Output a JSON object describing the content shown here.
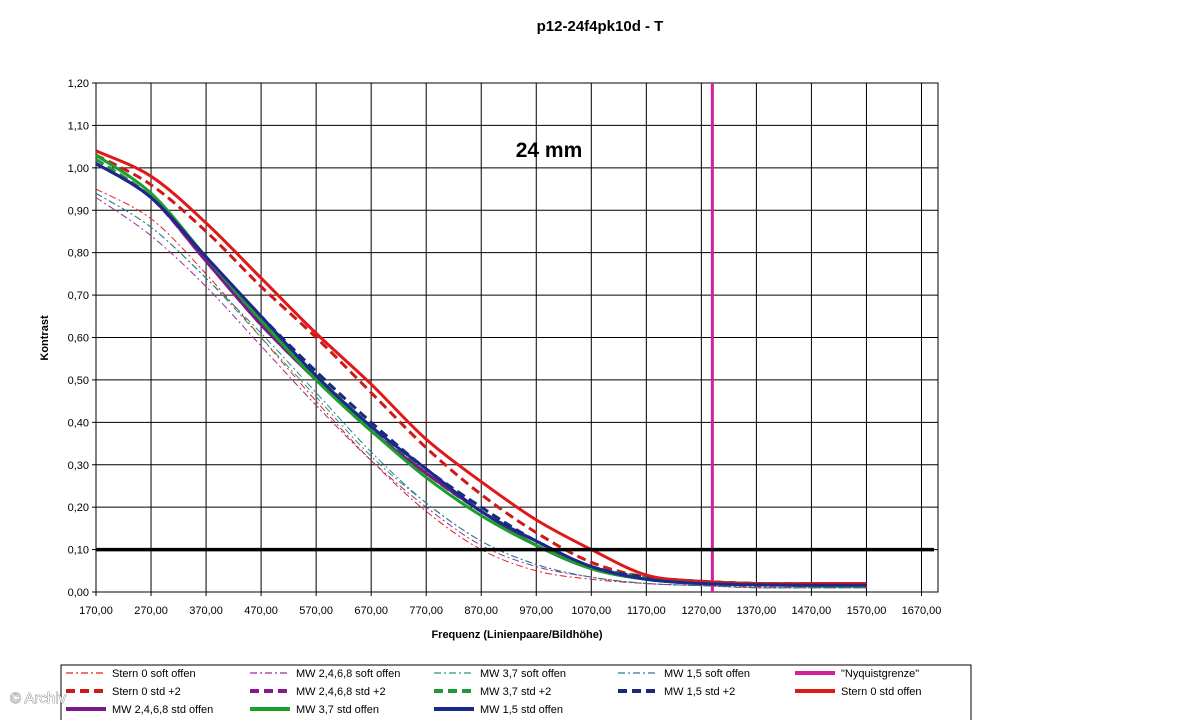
{
  "watermark": "© Archiv",
  "chart_data": {
    "type": "line",
    "title": "p12-24f4pk10d - T",
    "annotation": "24 mm",
    "xlabel": "Frequenz (Linienpaare/Bildhöhe)",
    "ylabel": "Kontrast",
    "xlim": [
      170,
      1700
    ],
    "ylim": [
      0,
      1.2
    ],
    "xticks": [
      "170,00",
      "270,00",
      "370,00",
      "470,00",
      "570,00",
      "670,00",
      "770,00",
      "870,00",
      "970,00",
      "1070,00",
      "1170,00",
      "1270,00",
      "1370,00",
      "1470,00",
      "1570,00",
      "1670,00"
    ],
    "xtick_values": [
      170,
      270,
      370,
      470,
      570,
      670,
      770,
      870,
      970,
      1070,
      1170,
      1270,
      1370,
      1470,
      1570,
      1670
    ],
    "yticks": [
      "0,00",
      "0,10",
      "0,20",
      "0,30",
      "0,40",
      "0,50",
      "0,60",
      "0,70",
      "0,80",
      "0,90",
      "1,00",
      "1,10",
      "1,20"
    ],
    "ytick_values": [
      0,
      0.1,
      0.2,
      0.3,
      0.4,
      0.5,
      0.6,
      0.7,
      0.8,
      0.9,
      1.0,
      1.1,
      1.2
    ],
    "grid": true,
    "legend_position": "bottom",
    "reference_lines": [
      {
        "orientation": "horizontal",
        "value": 0.1,
        "color": "#000000"
      }
    ],
    "series": [
      {
        "name": "Stern 0 soft offen",
        "color": "#e02020",
        "dash": "dashdot",
        "width": 1,
        "x": [
          170,
          270,
          370,
          470,
          570,
          670,
          770,
          870,
          970,
          1070,
          1170,
          1270,
          1370,
          1470,
          1570
        ],
        "y": [
          0.95,
          0.88,
          0.75,
          0.6,
          0.45,
          0.31,
          0.19,
          0.1,
          0.05,
          0.03,
          0.02,
          0.015,
          0.012,
          0.01,
          0.01
        ]
      },
      {
        "name": "MW 2,4,6,8 soft offen",
        "color": "#9a2a9a",
        "dash": "dashdot",
        "width": 1,
        "x": [
          170,
          270,
          370,
          470,
          570,
          670,
          770,
          870,
          970,
          1070,
          1170,
          1270,
          1370,
          1470,
          1570
        ],
        "y": [
          0.93,
          0.84,
          0.72,
          0.58,
          0.44,
          0.31,
          0.2,
          0.11,
          0.06,
          0.035,
          0.02,
          0.015,
          0.01,
          0.01,
          0.01
        ]
      },
      {
        "name": "MW 3,7 soft offen",
        "color": "#2a9a5a",
        "dash": "dashdot",
        "width": 1,
        "x": [
          170,
          270,
          370,
          470,
          570,
          670,
          770,
          870,
          970,
          1070,
          1170,
          1270,
          1370,
          1470,
          1570
        ],
        "y": [
          0.94,
          0.86,
          0.74,
          0.6,
          0.46,
          0.32,
          0.21,
          0.12,
          0.065,
          0.035,
          0.02,
          0.015,
          0.01,
          0.01,
          0.01
        ]
      },
      {
        "name": "MW 1,5 soft offen",
        "color": "#2a7a9a",
        "dash": "dashdot",
        "width": 1,
        "x": [
          170,
          270,
          370,
          470,
          570,
          670,
          770,
          870,
          970,
          1070,
          1170,
          1270,
          1370,
          1470,
          1570
        ],
        "y": [
          0.94,
          0.86,
          0.74,
          0.61,
          0.47,
          0.33,
          0.21,
          0.12,
          0.065,
          0.035,
          0.02,
          0.015,
          0.01,
          0.01,
          0.01
        ]
      },
      {
        "name": "\"Nyquistgrenze\"",
        "color": "#d81ea0",
        "dash": "solid",
        "width": 3,
        "x": [
          1290,
          1290
        ],
        "y": [
          0,
          1.2
        ]
      },
      {
        "name": "Stern 0 std +2",
        "color": "#d01818",
        "dash": "dash",
        "width": 3,
        "x": [
          170,
          270,
          370,
          470,
          570,
          670,
          770,
          870,
          970,
          1070,
          1170,
          1270,
          1370,
          1470,
          1570
        ],
        "y": [
          1.03,
          0.96,
          0.85,
          0.72,
          0.6,
          0.47,
          0.34,
          0.23,
          0.14,
          0.07,
          0.035,
          0.025,
          0.02,
          0.02,
          0.02
        ]
      },
      {
        "name": "MW 2,4,6,8 std +2",
        "color": "#8a1a8a",
        "dash": "dash",
        "width": 3,
        "x": [
          170,
          270,
          370,
          470,
          570,
          670,
          770,
          870,
          970,
          1070,
          1170,
          1270,
          1370,
          1470,
          1570
        ],
        "y": [
          1.02,
          0.93,
          0.78,
          0.63,
          0.5,
          0.38,
          0.28,
          0.19,
          0.12,
          0.06,
          0.035,
          0.025,
          0.02,
          0.015,
          0.015
        ]
      },
      {
        "name": "MW 3,7 std +2",
        "color": "#1a9a3a",
        "dash": "dash",
        "width": 3,
        "x": [
          170,
          270,
          370,
          470,
          570,
          670,
          770,
          870,
          970,
          1070,
          1170,
          1270,
          1370,
          1470,
          1570
        ],
        "y": [
          1.02,
          0.93,
          0.79,
          0.64,
          0.51,
          0.39,
          0.28,
          0.19,
          0.12,
          0.06,
          0.035,
          0.025,
          0.02,
          0.015,
          0.015
        ]
      },
      {
        "name": "MW 1,5 std +2",
        "color": "#1a2a7a",
        "dash": "dash",
        "width": 3,
        "x": [
          170,
          270,
          370,
          470,
          570,
          670,
          770,
          870,
          970,
          1070,
          1170,
          1270,
          1370,
          1470,
          1570
        ],
        "y": [
          1.01,
          0.93,
          0.79,
          0.65,
          0.52,
          0.4,
          0.29,
          0.2,
          0.12,
          0.06,
          0.035,
          0.025,
          0.02,
          0.018,
          0.018
        ]
      },
      {
        "name": "Stern 0 std offen",
        "color": "#e01818",
        "dash": "solid",
        "width": 3,
        "x": [
          170,
          270,
          370,
          470,
          570,
          670,
          770,
          870,
          970,
          1070,
          1170,
          1270,
          1370,
          1470,
          1570
        ],
        "y": [
          1.04,
          0.98,
          0.87,
          0.74,
          0.61,
          0.49,
          0.36,
          0.26,
          0.17,
          0.1,
          0.04,
          0.025,
          0.02,
          0.02,
          0.02
        ]
      },
      {
        "name": "MW 2,4,6,8 std offen",
        "color": "#7a1a8a",
        "dash": "solid",
        "width": 3,
        "x": [
          170,
          270,
          370,
          470,
          570,
          670,
          770,
          870,
          970,
          1070,
          1170,
          1270,
          1370,
          1470,
          1570
        ],
        "y": [
          1.01,
          0.93,
          0.78,
          0.63,
          0.5,
          0.38,
          0.28,
          0.19,
          0.11,
          0.055,
          0.03,
          0.02,
          0.017,
          0.015,
          0.015
        ]
      },
      {
        "name": "MW 3,7 std offen",
        "color": "#1aa02a",
        "dash": "solid",
        "width": 3,
        "x": [
          170,
          270,
          370,
          470,
          570,
          670,
          770,
          870,
          970,
          1070,
          1170,
          1270,
          1370,
          1470,
          1570
        ],
        "y": [
          1.03,
          0.94,
          0.79,
          0.64,
          0.5,
          0.38,
          0.27,
          0.18,
          0.11,
          0.055,
          0.03,
          0.02,
          0.017,
          0.015,
          0.015
        ]
      },
      {
        "name": "MW 1,5 std offen",
        "color": "#1a2a8a",
        "dash": "solid",
        "width": 3,
        "x": [
          170,
          270,
          370,
          470,
          570,
          670,
          770,
          870,
          970,
          1070,
          1170,
          1270,
          1370,
          1470,
          1570
        ],
        "y": [
          1.01,
          0.93,
          0.79,
          0.65,
          0.51,
          0.39,
          0.29,
          0.19,
          0.12,
          0.06,
          0.03,
          0.02,
          0.017,
          0.016,
          0.016
        ]
      }
    ]
  }
}
